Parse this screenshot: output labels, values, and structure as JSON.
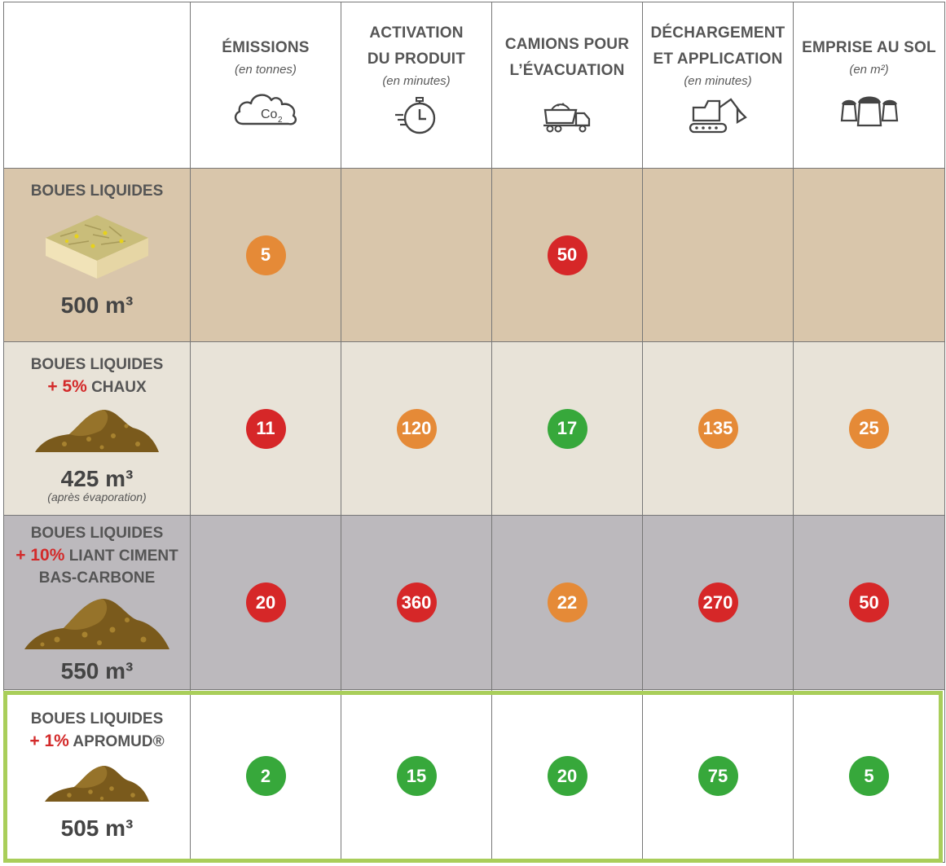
{
  "header": {
    "columns": [
      {
        "title_l1": "ÉMISSIONS",
        "title_l2": "",
        "unit": "(en tonnes)",
        "icon": "co2-cloud-icon"
      },
      {
        "title_l1": "ACTIVATION",
        "title_l2": "DU PRODUIT",
        "unit": "(en minutes)",
        "icon": "stopwatch-icon"
      },
      {
        "title_l1": "CAMIONS POUR",
        "title_l2": "L’ÉVACUATION",
        "unit": "",
        "icon": "dump-truck-icon"
      },
      {
        "title_l1": "DÉCHARGEMENT",
        "title_l2": "ET APPLICATION",
        "unit": "(en minutes)",
        "icon": "excavator-icon"
      },
      {
        "title_l1": "EMPRISE AU SOL",
        "title_l2": "",
        "unit": "(en m²)",
        "icon": "sacks-icon"
      }
    ]
  },
  "rows": [
    {
      "line1": "BOUES LIQUIDES",
      "additive_pct": "",
      "additive_name": "",
      "line3": "",
      "volume": "500 m³",
      "note": "",
      "image": "liquid-mud-slab-icon",
      "values": [
        {
          "value": "5",
          "color": "orange"
        },
        {
          "value": "",
          "color": ""
        },
        {
          "value": "50",
          "color": "red"
        },
        {
          "value": "",
          "color": ""
        },
        {
          "value": "",
          "color": ""
        }
      ]
    },
    {
      "line1": "BOUES LIQUIDES",
      "additive_pct": "+ 5%",
      "additive_name": "CHAUX",
      "line3": "",
      "volume": "425 m³",
      "note": "(après évaporation)",
      "image": "soil-pile-icon",
      "values": [
        {
          "value": "11",
          "color": "red"
        },
        {
          "value": "120",
          "color": "orange"
        },
        {
          "value": "17",
          "color": "green"
        },
        {
          "value": "135",
          "color": "orange"
        },
        {
          "value": "25",
          "color": "orange"
        }
      ]
    },
    {
      "line1": "BOUES LIQUIDES",
      "additive_pct": "+ 10%",
      "additive_name": "LIANT CIMENT",
      "line3": "BAS-CARBONE",
      "volume": "550 m³",
      "note": "",
      "image": "soil-pile-large-icon",
      "values": [
        {
          "value": "20",
          "color": "red"
        },
        {
          "value": "360",
          "color": "red"
        },
        {
          "value": "22",
          "color": "orange"
        },
        {
          "value": "270",
          "color": "red"
        },
        {
          "value": "50",
          "color": "red"
        }
      ]
    },
    {
      "line1": "BOUES LIQUIDES",
      "additive_pct": "+ 1%",
      "additive_name": "APROMUD®",
      "line3": "",
      "volume": "505 m³",
      "note": "",
      "image": "soil-pile-small-icon",
      "values": [
        {
          "value": "2",
          "color": "green"
        },
        {
          "value": "15",
          "color": "green"
        },
        {
          "value": "20",
          "color": "green"
        },
        {
          "value": "75",
          "color": "green"
        },
        {
          "value": "5",
          "color": "green"
        }
      ]
    }
  ],
  "colors": {
    "orange": "#e58a37",
    "red": "#d62728",
    "green": "#37a83b",
    "highlight_border": "#a9ce5a",
    "row1_bg": "#d9c6ab",
    "row2_bg": "#e8e3d8",
    "row3_bg": "#bcb9bd",
    "row4_bg": "#ffffff"
  }
}
